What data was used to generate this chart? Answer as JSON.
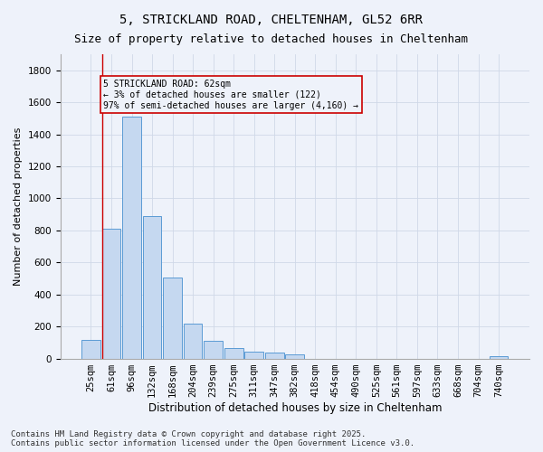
{
  "title": "5, STRICKLAND ROAD, CHELTENHAM, GL52 6RR",
  "subtitle": "Size of property relative to detached houses in Cheltenham",
  "xlabel": "Distribution of detached houses by size in Cheltenham",
  "ylabel": "Number of detached properties",
  "categories": [
    "25sqm",
    "61sqm",
    "96sqm",
    "132sqm",
    "168sqm",
    "204sqm",
    "239sqm",
    "275sqm",
    "311sqm",
    "347sqm",
    "382sqm",
    "418sqm",
    "454sqm",
    "490sqm",
    "525sqm",
    "561sqm",
    "597sqm",
    "633sqm",
    "668sqm",
    "704sqm",
    "740sqm"
  ],
  "values": [
    115,
    810,
    1510,
    890,
    505,
    215,
    110,
    65,
    40,
    35,
    25,
    0,
    0,
    0,
    0,
    0,
    0,
    0,
    0,
    0,
    15
  ],
  "bar_color": "#c5d8f0",
  "bar_edge_color": "#5b9bd5",
  "grid_color": "#d0d8e8",
  "bg_color": "#eef2fa",
  "annotation_text": "5 STRICKLAND ROAD: 62sqm\n← 3% of detached houses are smaller (122)\n97% of semi-detached houses are larger (4,160) →",
  "vline_x_idx": 1,
  "annotation_box_color": "#cc0000",
  "ylim": [
    0,
    1900
  ],
  "yticks": [
    0,
    200,
    400,
    600,
    800,
    1000,
    1200,
    1400,
    1600,
    1800
  ],
  "footer": "Contains HM Land Registry data © Crown copyright and database right 2025.\nContains public sector information licensed under the Open Government Licence v3.0.",
  "title_fontsize": 10,
  "subtitle_fontsize": 9,
  "xlabel_fontsize": 8.5,
  "ylabel_fontsize": 8,
  "tick_fontsize": 7.5,
  "annot_fontsize": 7,
  "footer_fontsize": 6.5
}
